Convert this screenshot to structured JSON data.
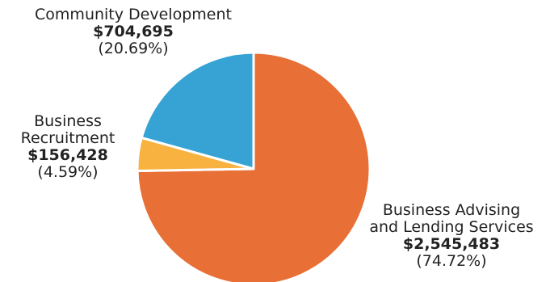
{
  "chart_data": {
    "type": "pie",
    "slices": [
      {
        "name_lines": [
          "Business Advising",
          "and Lending Services"
        ],
        "value": 2545483,
        "amount": "$2,545,483",
        "percent": "(74.72%)",
        "color": "#e86f35"
      },
      {
        "name_lines": [
          "Business",
          "Recruitment"
        ],
        "value": 156428,
        "amount": "$156,428",
        "percent": "(4.59%)",
        "color": "#f8b23f"
      },
      {
        "name_lines": [
          "Community Development"
        ],
        "value": 704695,
        "amount": "$704,695",
        "percent": "(20.69%)",
        "color": "#37a3d4"
      }
    ]
  }
}
